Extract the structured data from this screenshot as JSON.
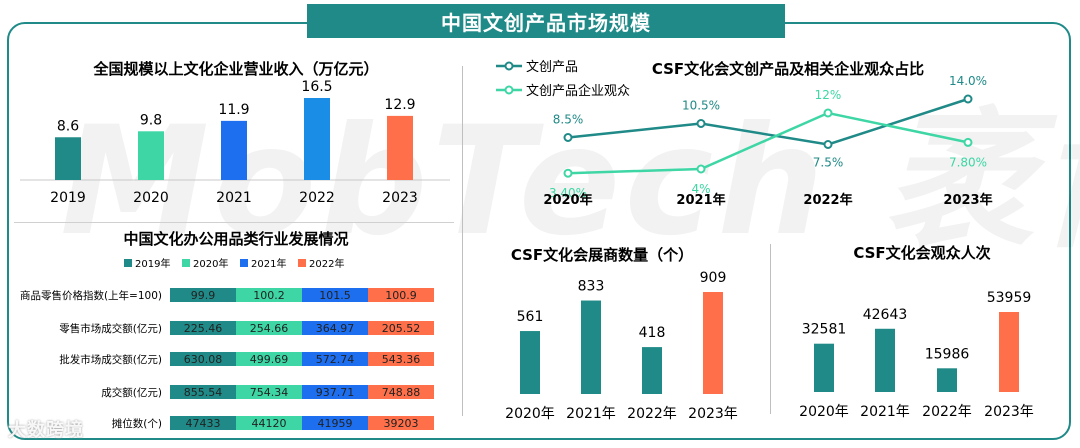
{
  "page_title": "中国文创产品市场规模",
  "watermark": "MobTech 袤博",
  "bottom_logo": "大数跨境",
  "colors": {
    "teal": "#1f8a87",
    "mint": "#3dd6a4",
    "blue": "#1e6ff0",
    "blue2": "#1a8ee6",
    "orange": "#ff6f4a"
  },
  "chart_data": [
    {
      "type": "bar",
      "title": "全国规模以上文化企业营业收入（万亿元）",
      "categories": [
        "2019",
        "2020",
        "2021",
        "2022",
        "2023"
      ],
      "values": [
        8.6,
        9.8,
        11.9,
        16.5,
        12.9
      ],
      "value_labels": [
        "8.6",
        "9.8",
        "11.9",
        "16.5",
        "12.9"
      ],
      "colors": [
        "#1f8a87",
        "#3dd6a4",
        "#1e6ff0",
        "#1a8ee6",
        "#ff6f4a"
      ],
      "ylim": [
        0,
        16.5
      ]
    },
    {
      "type": "line",
      "title": "CSF文化会文创产品及相关企业观众占比",
      "categories": [
        "2020年",
        "2021年",
        "2022年",
        "2023年"
      ],
      "series": [
        {
          "name": "文创产品",
          "values": [
            8.5,
            10.5,
            7.5,
            14.0
          ],
          "labels": [
            "8.5%",
            "10.5%",
            "7.5%",
            "14.0%"
          ],
          "color": "#1f8a87"
        },
        {
          "name": "文创产品企业观众",
          "values": [
            3.4,
            4.0,
            12.0,
            7.8
          ],
          "labels": [
            "3.40%",
            "4%",
            "12%",
            "7.80%"
          ],
          "color": "#3dd6a4"
        }
      ],
      "ylim": [
        3,
        15
      ]
    },
    {
      "type": "bar",
      "title": "中国文化办公用品类行业发展情况",
      "stacked": "horizontal",
      "categories": [
        "商品零售价格指数(上年=100)",
        "零售市场成交额(亿元)",
        "批发市场成交额(亿元)",
        "成交额(亿元)",
        "摊位数(个)"
      ],
      "series": [
        {
          "name": "2019年",
          "color": "#1f8a87",
          "values": [
            99.9,
            225.46,
            630.08,
            855.54,
            47433
          ],
          "labels": [
            "99.9",
            "225.46",
            "630.08",
            "855.54",
            "47433"
          ]
        },
        {
          "name": "2020年",
          "color": "#3dd6a4",
          "values": [
            100.2,
            254.66,
            499.69,
            754.34,
            44120
          ],
          "labels": [
            "100.2",
            "254.66",
            "499.69",
            "754.34",
            "44120"
          ]
        },
        {
          "name": "2021年",
          "color": "#1e6ff0",
          "values": [
            101.5,
            364.97,
            572.74,
            937.71,
            41959
          ],
          "labels": [
            "101.5",
            "364.97",
            "572.74",
            "937.71",
            "41959"
          ]
        },
        {
          "name": "2022年",
          "color": "#ff6f4a",
          "values": [
            100.9,
            205.52,
            543.36,
            748.88,
            39203
          ],
          "labels": [
            "100.9",
            "205.52",
            "543.36",
            "748.88",
            "39203"
          ]
        }
      ]
    },
    {
      "type": "bar",
      "title": "CSF文化会展商数量（个）",
      "categories": [
        "2020年",
        "2021年",
        "2022年",
        "2023年"
      ],
      "values": [
        561,
        833,
        418,
        909
      ],
      "value_labels": [
        "561",
        "833",
        "418",
        "909"
      ],
      "colors": [
        "#1f8a87",
        "#1f8a87",
        "#1f8a87",
        "#ff6f4a"
      ],
      "ylim": [
        0,
        909
      ]
    },
    {
      "type": "bar",
      "title": "CSF文化会观众人次",
      "categories": [
        "2020年",
        "2021年",
        "2022年",
        "2023年"
      ],
      "values": [
        32581,
        42643,
        15986,
        53959
      ],
      "value_labels": [
        "32581",
        "42643",
        "15986",
        "53959"
      ],
      "colors": [
        "#1f8a87",
        "#1f8a87",
        "#1f8a87",
        "#ff6f4a"
      ],
      "ylim": [
        0,
        53959
      ]
    }
  ]
}
